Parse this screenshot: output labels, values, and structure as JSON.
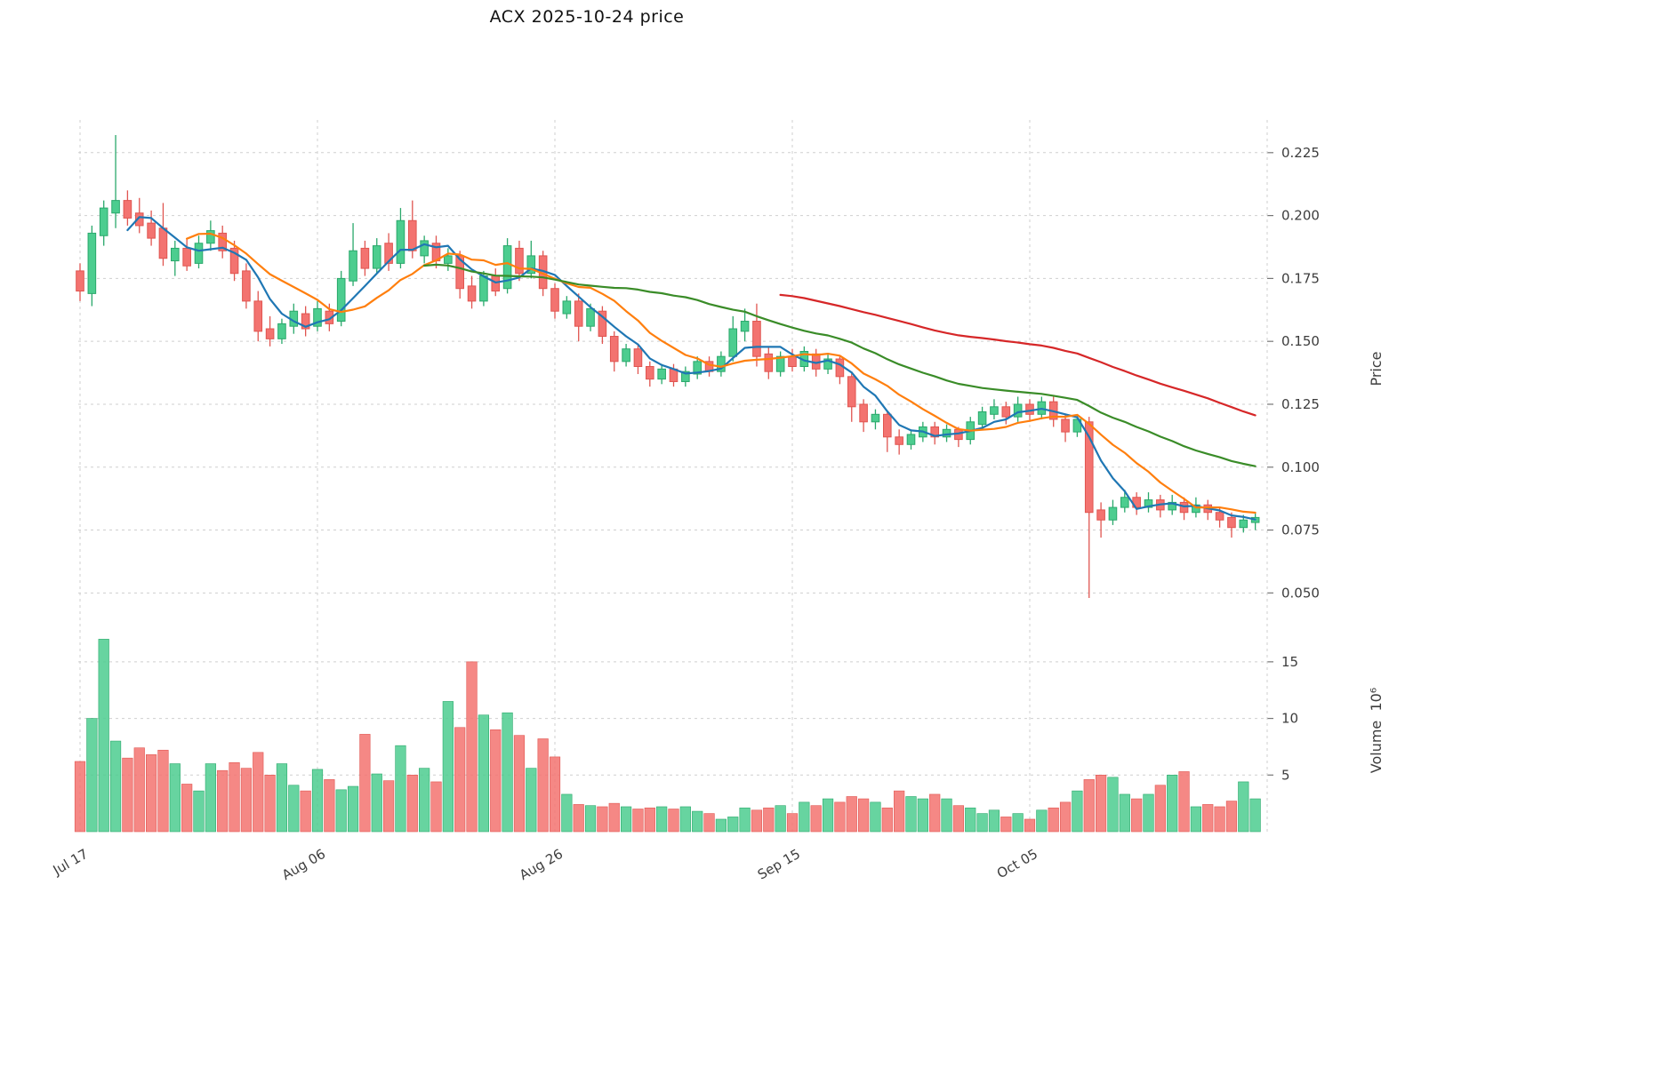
{
  "chart_data": {
    "type": "candlestick",
    "title": "ACX  2025-10-24  price",
    "price_axis": {
      "label": "Price",
      "ticks": [
        0.05,
        0.075,
        0.1,
        0.125,
        0.15,
        0.175,
        0.2,
        0.225
      ],
      "range": [
        0.042,
        0.238
      ]
    },
    "volume_axis": {
      "label": "Volume  10⁶",
      "ticks": [
        5,
        10,
        15
      ],
      "range": [
        0,
        17.5
      ]
    },
    "x_axis": {
      "tick_indices": [
        0,
        20,
        40,
        60,
        80,
        100
      ],
      "tick_labels": [
        "Jul 17",
        "Aug 06",
        "Aug 26",
        "Sep 15",
        "Oct 05",
        ""
      ]
    },
    "moving_averages": [
      {
        "name": "ma-short",
        "window": 5,
        "color": "#1f77b4"
      },
      {
        "name": "ma-mid",
        "window": 10,
        "color": "#ff7f0e"
      },
      {
        "name": "ma-long",
        "window": 30,
        "color": "#3a8c28"
      },
      {
        "name": "ma-xlong",
        "window": 60,
        "color": "#d62728"
      }
    ],
    "colors": {
      "up": "#4ccd8f",
      "up_edge": "#2aa86b",
      "down": "#f37370",
      "down_edge": "#e05550",
      "grid": "#cfcfcf",
      "text": "#3d3d3d"
    },
    "candles": [
      [
        0.178,
        0.181,
        0.166,
        0.17,
        6.2
      ],
      [
        0.169,
        0.196,
        0.164,
        0.193,
        10.0
      ],
      [
        0.192,
        0.206,
        0.188,
        0.203,
        17.0
      ],
      [
        0.201,
        0.232,
        0.195,
        0.206,
        8.0
      ],
      [
        0.206,
        0.21,
        0.196,
        0.199,
        6.5
      ],
      [
        0.201,
        0.207,
        0.193,
        0.196,
        7.4
      ],
      [
        0.197,
        0.202,
        0.188,
        0.191,
        6.8
      ],
      [
        0.195,
        0.205,
        0.18,
        0.183,
        7.2
      ],
      [
        0.182,
        0.19,
        0.176,
        0.187,
        6.0
      ],
      [
        0.187,
        0.191,
        0.178,
        0.18,
        4.2
      ],
      [
        0.181,
        0.192,
        0.179,
        0.189,
        3.6
      ],
      [
        0.189,
        0.198,
        0.186,
        0.194,
        6.0
      ],
      [
        0.193,
        0.196,
        0.183,
        0.186,
        5.4
      ],
      [
        0.187,
        0.19,
        0.174,
        0.177,
        6.1
      ],
      [
        0.178,
        0.181,
        0.163,
        0.166,
        5.6
      ],
      [
        0.166,
        0.17,
        0.15,
        0.154,
        7.0
      ],
      [
        0.155,
        0.16,
        0.148,
        0.151,
        5.0
      ],
      [
        0.151,
        0.159,
        0.149,
        0.157,
        6.0
      ],
      [
        0.156,
        0.165,
        0.153,
        0.162,
        4.1
      ],
      [
        0.161,
        0.164,
        0.152,
        0.155,
        3.6
      ],
      [
        0.156,
        0.166,
        0.154,
        0.163,
        5.5
      ],
      [
        0.162,
        0.165,
        0.154,
        0.157,
        4.6
      ],
      [
        0.158,
        0.178,
        0.156,
        0.175,
        3.7
      ],
      [
        0.174,
        0.197,
        0.172,
        0.186,
        4.0
      ],
      [
        0.187,
        0.19,
        0.176,
        0.179,
        8.6
      ],
      [
        0.179,
        0.191,
        0.177,
        0.188,
        5.1
      ],
      [
        0.189,
        0.193,
        0.178,
        0.181,
        4.5
      ],
      [
        0.181,
        0.203,
        0.179,
        0.198,
        7.6
      ],
      [
        0.198,
        0.206,
        0.183,
        0.186,
        5.0
      ],
      [
        0.184,
        0.192,
        0.181,
        0.19,
        5.6
      ],
      [
        0.189,
        0.192,
        0.179,
        0.182,
        4.4
      ],
      [
        0.181,
        0.187,
        0.178,
        0.184,
        11.5
      ],
      [
        0.184,
        0.186,
        0.167,
        0.171,
        9.2
      ],
      [
        0.172,
        0.176,
        0.163,
        0.166,
        15.0
      ],
      [
        0.166,
        0.178,
        0.164,
        0.176,
        10.3
      ],
      [
        0.176,
        0.179,
        0.168,
        0.17,
        9.0
      ],
      [
        0.171,
        0.191,
        0.169,
        0.188,
        10.5
      ],
      [
        0.187,
        0.19,
        0.174,
        0.177,
        8.5
      ],
      [
        0.177,
        0.19,
        0.175,
        0.184,
        5.6
      ],
      [
        0.184,
        0.186,
        0.168,
        0.171,
        8.2
      ],
      [
        0.171,
        0.173,
        0.159,
        0.162,
        6.6
      ],
      [
        0.161,
        0.168,
        0.159,
        0.166,
        3.3
      ],
      [
        0.166,
        0.169,
        0.15,
        0.156,
        2.4
      ],
      [
        0.156,
        0.165,
        0.154,
        0.163,
        2.3
      ],
      [
        0.162,
        0.164,
        0.149,
        0.152,
        2.2
      ],
      [
        0.152,
        0.154,
        0.138,
        0.142,
        2.5
      ],
      [
        0.142,
        0.149,
        0.14,
        0.147,
        2.2
      ],
      [
        0.147,
        0.149,
        0.137,
        0.14,
        2.0
      ],
      [
        0.14,
        0.142,
        0.132,
        0.135,
        2.1
      ],
      [
        0.135,
        0.141,
        0.133,
        0.139,
        2.2
      ],
      [
        0.139,
        0.141,
        0.132,
        0.134,
        2.0
      ],
      [
        0.134,
        0.14,
        0.132,
        0.138,
        2.2
      ],
      [
        0.137,
        0.144,
        0.135,
        0.142,
        1.8
      ],
      [
        0.142,
        0.144,
        0.136,
        0.138,
        1.6
      ],
      [
        0.138,
        0.146,
        0.136,
        0.144,
        1.1
      ],
      [
        0.144,
        0.16,
        0.142,
        0.155,
        1.3
      ],
      [
        0.154,
        0.163,
        0.15,
        0.158,
        2.1
      ],
      [
        0.158,
        0.165,
        0.14,
        0.144,
        1.9
      ],
      [
        0.145,
        0.148,
        0.135,
        0.138,
        2.1
      ],
      [
        0.138,
        0.146,
        0.136,
        0.144,
        2.3
      ],
      [
        0.144,
        0.147,
        0.138,
        0.14,
        1.6
      ],
      [
        0.14,
        0.148,
        0.138,
        0.146,
        2.6
      ],
      [
        0.145,
        0.147,
        0.136,
        0.139,
        2.3
      ],
      [
        0.139,
        0.145,
        0.137,
        0.143,
        2.9
      ],
      [
        0.143,
        0.144,
        0.133,
        0.136,
        2.6
      ],
      [
        0.136,
        0.138,
        0.118,
        0.124,
        3.1
      ],
      [
        0.125,
        0.127,
        0.114,
        0.118,
        2.9
      ],
      [
        0.118,
        0.123,
        0.115,
        0.121,
        2.6
      ],
      [
        0.121,
        0.122,
        0.106,
        0.112,
        2.1
      ],
      [
        0.112,
        0.115,
        0.105,
        0.109,
        3.6
      ],
      [
        0.109,
        0.115,
        0.107,
        0.113,
        3.1
      ],
      [
        0.112,
        0.118,
        0.11,
        0.116,
        2.9
      ],
      [
        0.116,
        0.118,
        0.109,
        0.112,
        3.3
      ],
      [
        0.112,
        0.117,
        0.11,
        0.115,
        2.9
      ],
      [
        0.115,
        0.116,
        0.108,
        0.111,
        2.3
      ],
      [
        0.111,
        0.12,
        0.109,
        0.118,
        2.1
      ],
      [
        0.117,
        0.124,
        0.115,
        0.122,
        1.6
      ],
      [
        0.121,
        0.127,
        0.119,
        0.124,
        1.9
      ],
      [
        0.124,
        0.126,
        0.117,
        0.12,
        1.3
      ],
      [
        0.12,
        0.128,
        0.118,
        0.125,
        1.6
      ],
      [
        0.125,
        0.127,
        0.118,
        0.121,
        1.1
      ],
      [
        0.121,
        0.128,
        0.119,
        0.126,
        1.9
      ],
      [
        0.126,
        0.128,
        0.116,
        0.119,
        2.1
      ],
      [
        0.119,
        0.121,
        0.11,
        0.114,
        2.6
      ],
      [
        0.114,
        0.121,
        0.112,
        0.119,
        3.6
      ],
      [
        0.118,
        0.12,
        0.048,
        0.082,
        4.6
      ],
      [
        0.083,
        0.086,
        0.072,
        0.079,
        5.0
      ],
      [
        0.079,
        0.087,
        0.077,
        0.084,
        4.8
      ],
      [
        0.084,
        0.091,
        0.082,
        0.088,
        3.3
      ],
      [
        0.088,
        0.09,
        0.081,
        0.084,
        2.9
      ],
      [
        0.084,
        0.09,
        0.082,
        0.087,
        3.3
      ],
      [
        0.087,
        0.089,
        0.08,
        0.083,
        4.1
      ],
      [
        0.083,
        0.089,
        0.081,
        0.086,
        5.0
      ],
      [
        0.086,
        0.088,
        0.079,
        0.082,
        5.3
      ],
      [
        0.082,
        0.088,
        0.08,
        0.085,
        2.2
      ],
      [
        0.085,
        0.087,
        0.079,
        0.082,
        2.4
      ],
      [
        0.082,
        0.084,
        0.076,
        0.079,
        2.2
      ],
      [
        0.08,
        0.082,
        0.072,
        0.076,
        2.7
      ],
      [
        0.076,
        0.081,
        0.074,
        0.079,
        4.4
      ],
      [
        0.078,
        0.082,
        0.075,
        0.08,
        2.9
      ]
    ]
  }
}
